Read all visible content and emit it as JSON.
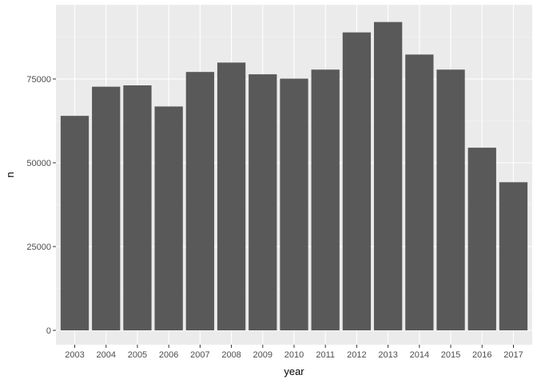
{
  "chart_data": {
    "type": "bar",
    "title": "",
    "xlabel": "year",
    "ylabel": "n",
    "categories": [
      "2003",
      "2004",
      "2005",
      "2006",
      "2007",
      "2008",
      "2009",
      "2010",
      "2011",
      "2012",
      "2013",
      "2014",
      "2015",
      "2016",
      "2017"
    ],
    "values": [
      64000,
      72700,
      73100,
      66800,
      77100,
      79900,
      76400,
      75100,
      77800,
      88900,
      92000,
      82300,
      77800,
      54500,
      44200
    ],
    "ylim": [
      0,
      97000
    ],
    "yticks": [
      0,
      25000,
      50000,
      75000
    ],
    "ytick_labels": [
      "0",
      "25000",
      "50000",
      "75000"
    ],
    "grid": true,
    "legend": "none",
    "colors": {
      "panel_background": "#ebebeb",
      "grid_major": "#ffffff",
      "grid_minor": "#f5f5f5",
      "bar_fill": "#595959",
      "tick_mark": "#333333",
      "tick_label": "#4d4d4d",
      "axis_title": "#000000"
    }
  }
}
